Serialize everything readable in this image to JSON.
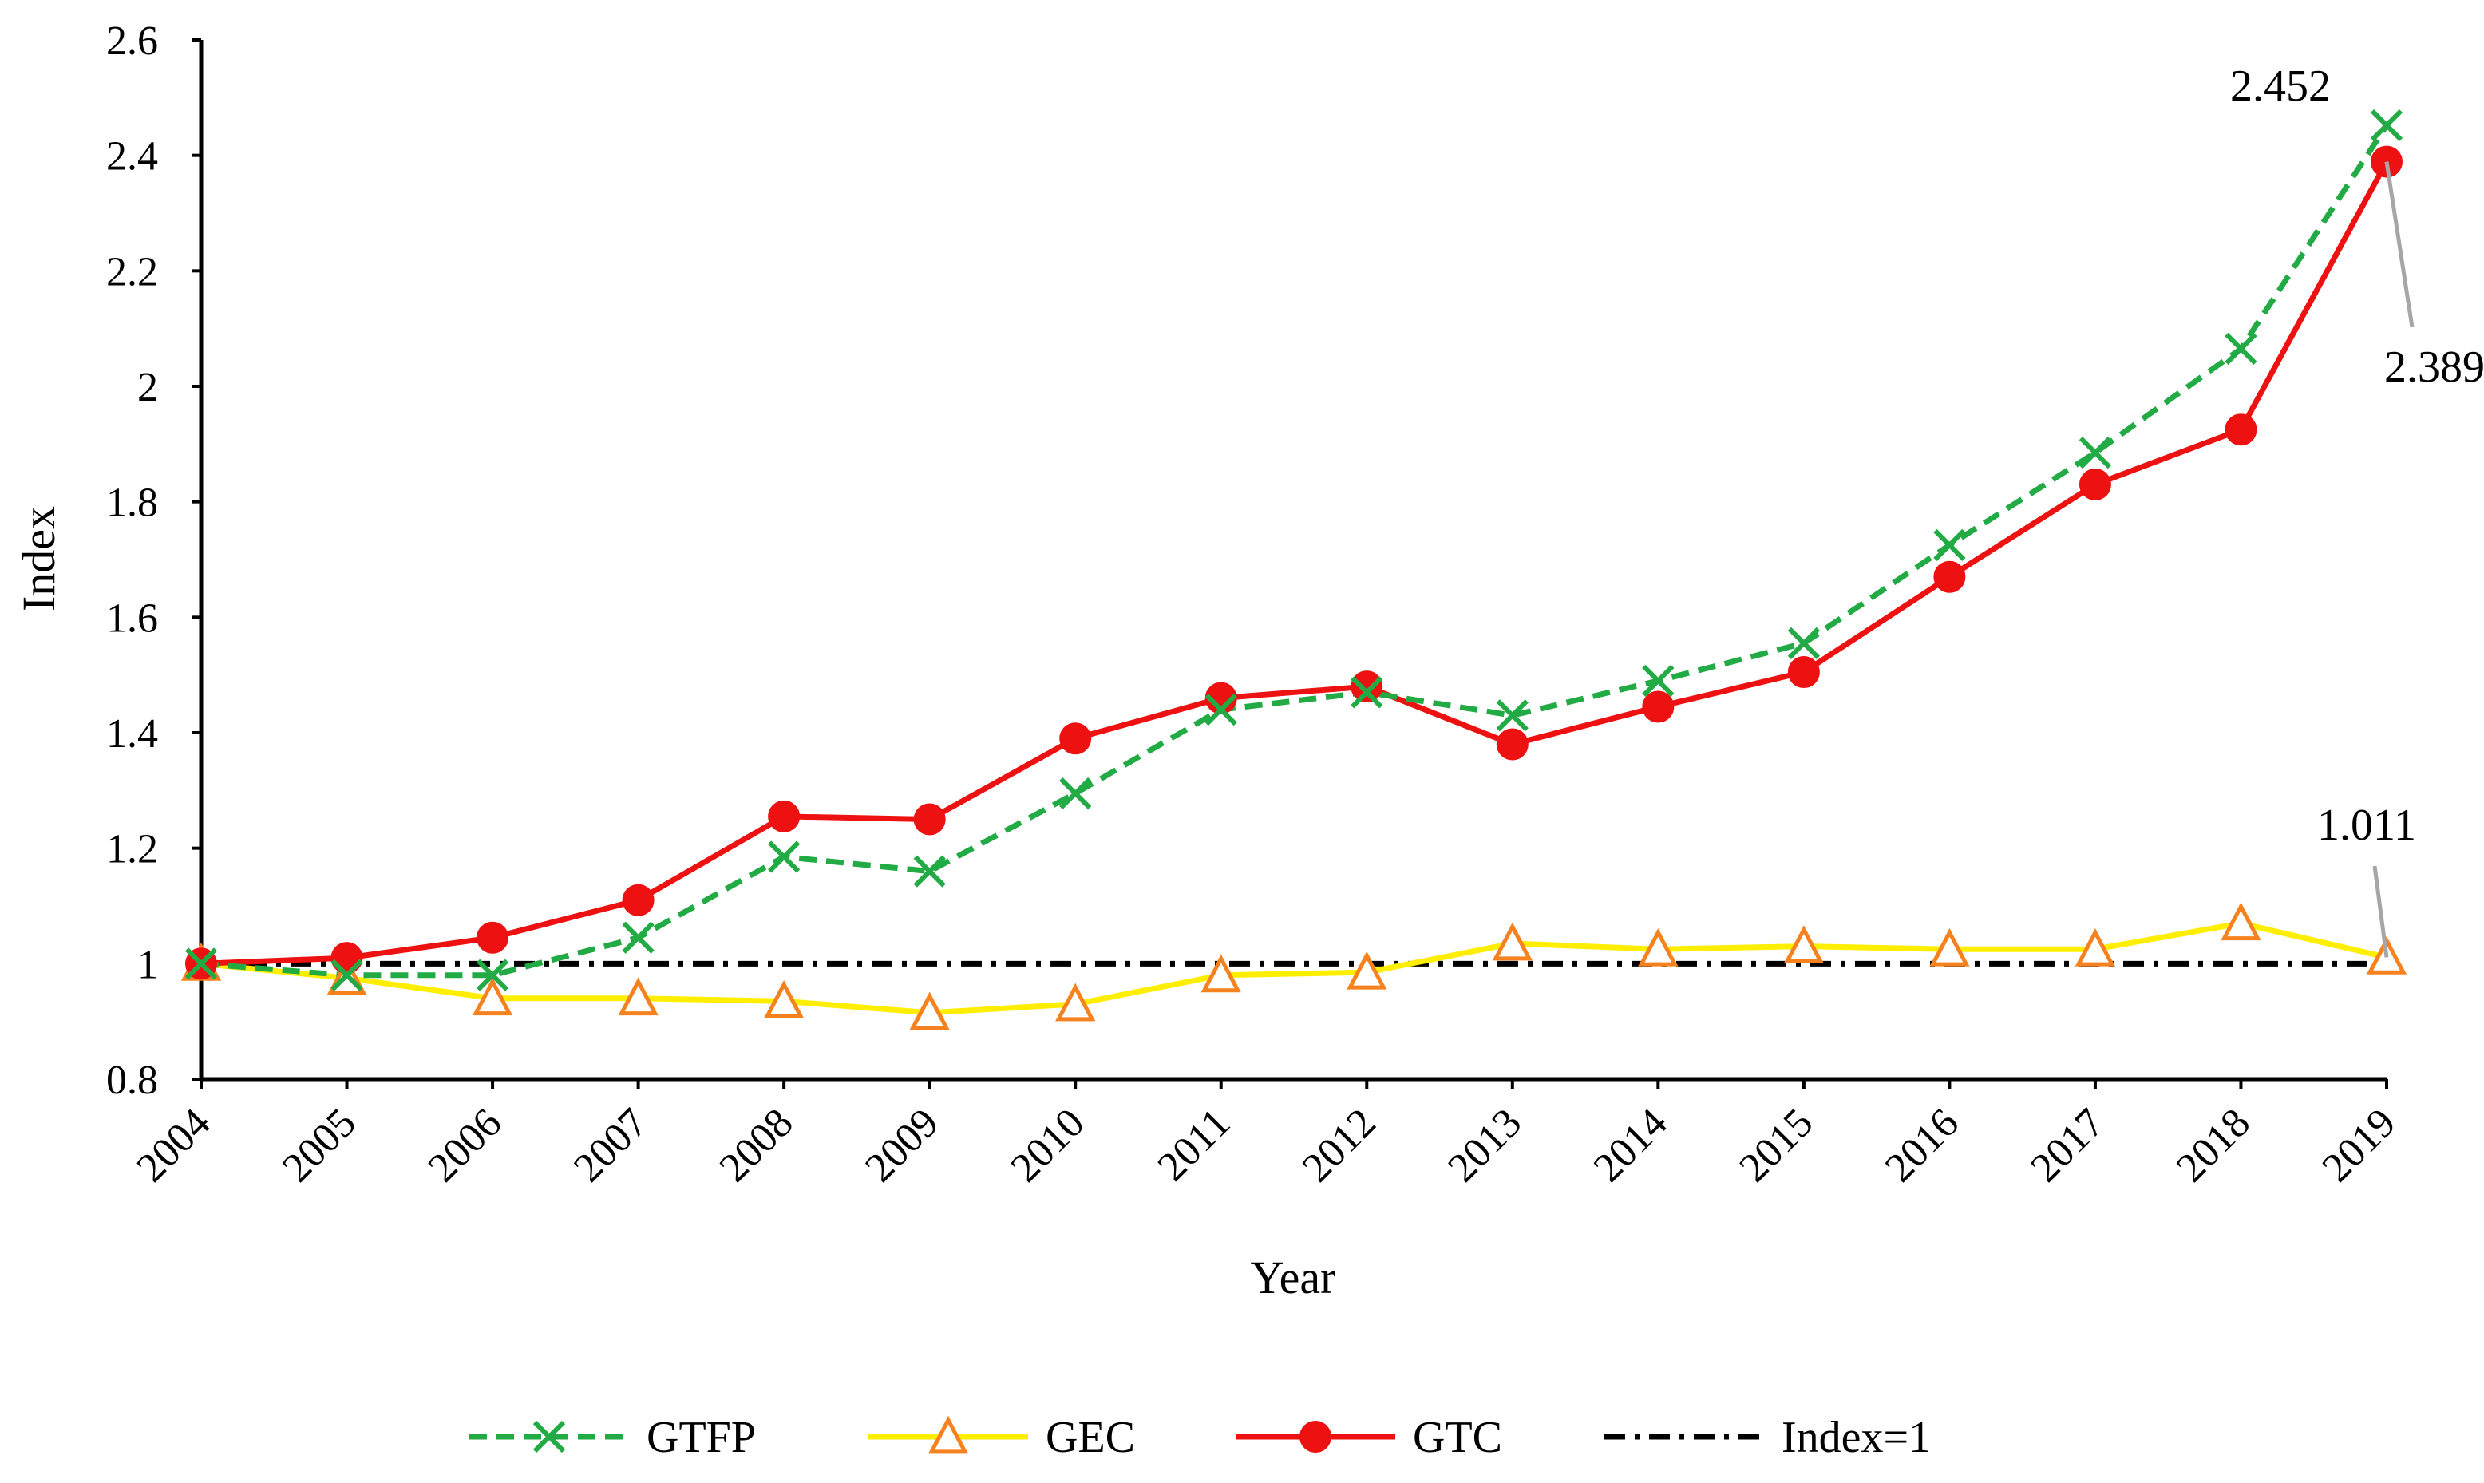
{
  "chart_data": {
    "type": "line",
    "title": "",
    "xlabel": "Year",
    "ylabel": "Index",
    "ylim": [
      0.8,
      2.6
    ],
    "yticks": [
      0.8,
      1,
      1.2,
      1.4,
      1.6,
      1.8,
      2,
      2.2,
      2.4,
      2.6
    ],
    "ytick_labels": [
      "0.8",
      "1",
      "1.2",
      "1.4",
      "1.6",
      "1.8",
      "2",
      "2.2",
      "2.4",
      "2.6"
    ],
    "categories": [
      "2004",
      "2005",
      "2006",
      "2007",
      "2008",
      "2009",
      "2010",
      "2011",
      "2012",
      "2013",
      "2014",
      "2015",
      "2016",
      "2017",
      "2018",
      "2019"
    ],
    "grid": false,
    "legend_position": "bottom",
    "series": [
      {
        "name": "GTFP",
        "color": "#22aa44",
        "line_style": "dashed",
        "marker": "x",
        "values": [
          1.0,
          0.98,
          0.98,
          1.045,
          1.185,
          1.16,
          1.295,
          1.44,
          1.47,
          1.43,
          1.49,
          1.555,
          1.725,
          1.885,
          2.065,
          2.452
        ]
      },
      {
        "name": "GEC",
        "color": "#ffee00",
        "marker_color": "#f5821f",
        "line_style": "solid",
        "marker": "triangle",
        "values": [
          1.0,
          0.975,
          0.94,
          0.94,
          0.935,
          0.915,
          0.93,
          0.98,
          0.985,
          1.035,
          1.025,
          1.03,
          1.025,
          1.025,
          1.07,
          1.011
        ]
      },
      {
        "name": "GTC",
        "color": "#ee1111",
        "line_style": "solid",
        "marker": "circle",
        "values": [
          1.0,
          1.01,
          1.045,
          1.11,
          1.255,
          1.25,
          1.39,
          1.46,
          1.48,
          1.38,
          1.445,
          1.505,
          1.67,
          1.83,
          1.925,
          2.389
        ]
      },
      {
        "name": "Index=1",
        "color": "#000000",
        "line_style": "dash-dot",
        "marker": "none",
        "values": [
          1,
          1,
          1,
          1,
          1,
          1,
          1,
          1,
          1,
          1,
          1,
          1,
          1,
          1,
          1,
          1
        ]
      }
    ],
    "annotations": [
      {
        "text": "2.452",
        "series": "GTFP",
        "category": "2019",
        "value": 2.452,
        "leader_line": false
      },
      {
        "text": "2.389",
        "series": "GTC",
        "category": "2019",
        "value": 2.389,
        "leader_line": true
      },
      {
        "text": "1.011",
        "series": "GEC",
        "category": "2019",
        "value": 1.011,
        "leader_line": true
      }
    ]
  }
}
